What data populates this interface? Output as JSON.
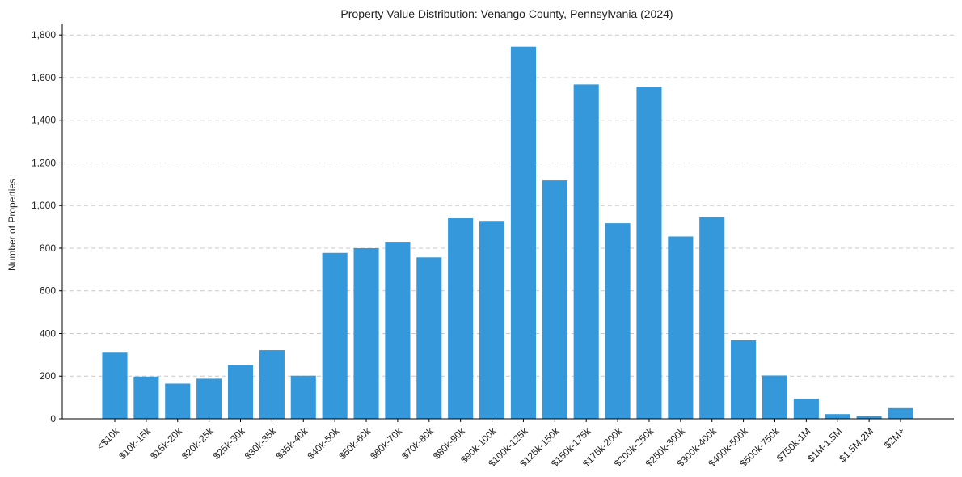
{
  "chart_data": {
    "type": "bar",
    "title": "Property Value Distribution: Venango County, Pennsylvania (2024)",
    "xlabel": "",
    "ylabel": "Number of Properties",
    "ylim": [
      0,
      1850
    ],
    "yticks": [
      0,
      200,
      400,
      600,
      800,
      1000,
      1200,
      1400,
      1600,
      1800
    ],
    "ytick_labels": [
      "0",
      "200",
      "400",
      "600",
      "800",
      "1,000",
      "1,200",
      "1,400",
      "1,600",
      "1,800"
    ],
    "grid": "y-dashed",
    "bar_color": "#3498db",
    "categories": [
      "<$10k",
      "$10k-15k",
      "$15k-20k",
      "$20k-25k",
      "$25k-30k",
      "$30k-35k",
      "$35k-40k",
      "$40k-50k",
      "$50k-60k",
      "$60k-70k",
      "$70k-80k",
      "$80k-90k",
      "$90k-100k",
      "$100k-125k",
      "$125k-150k",
      "$150k-175k",
      "$175k-200k",
      "$200k-250k",
      "$250k-300k",
      "$300k-400k",
      "$400k-500k",
      "$500k-750k",
      "$750k-1M",
      "$1M-1.5M",
      "$1.5M-2M",
      "$2M+"
    ],
    "values": [
      310,
      198,
      165,
      188,
      252,
      322,
      202,
      778,
      800,
      830,
      757,
      940,
      928,
      1745,
      1118,
      1568,
      917,
      1557,
      855,
      945,
      368,
      203,
      95,
      22,
      12,
      50
    ]
  }
}
